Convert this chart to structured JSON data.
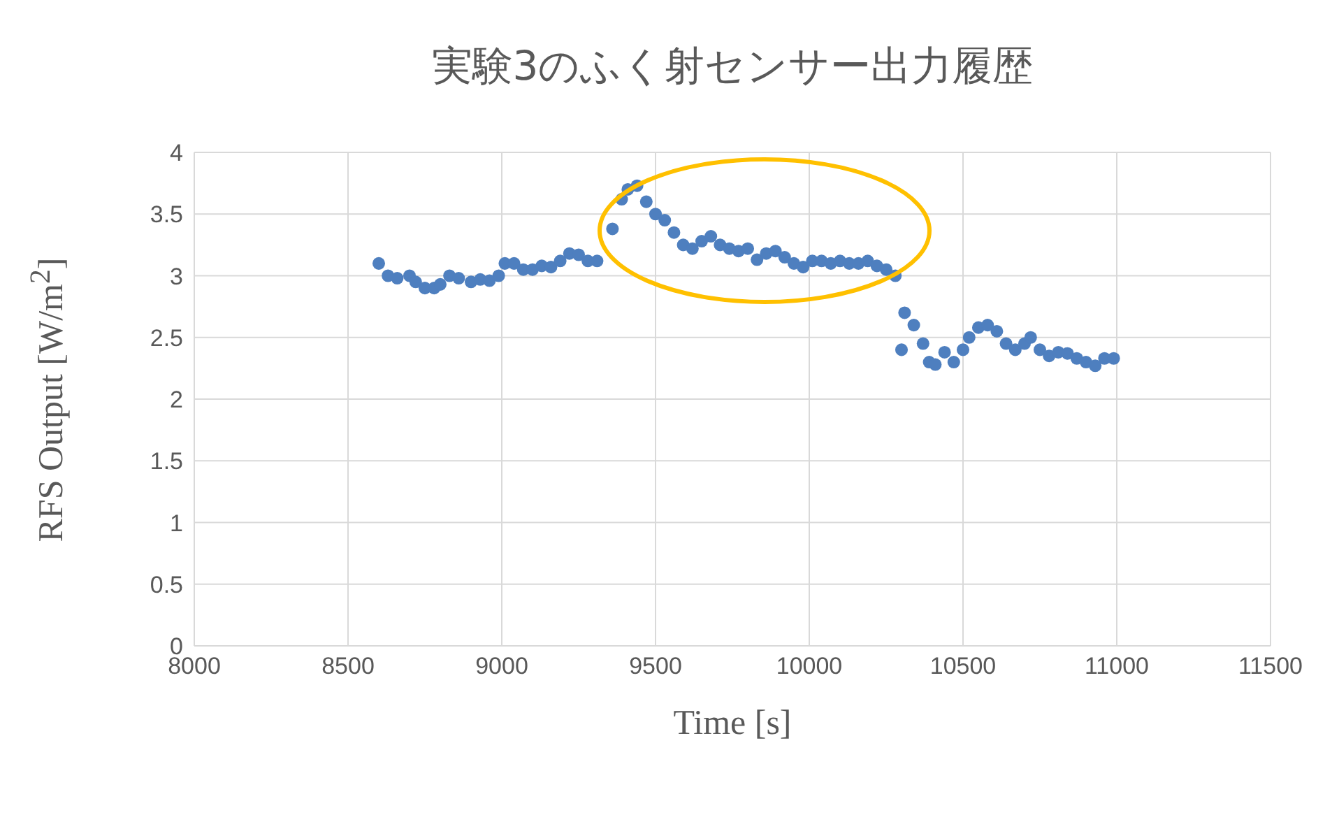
{
  "chart_data": {
    "type": "scatter",
    "title": "実験3のふく射センサー出力履歴",
    "xlabel": "Time [s]",
    "ylabel": "RFS Output [W/m$^{2}$]",
    "xlim": [
      8000,
      11500
    ],
    "xticks": [
      8000,
      8500,
      9000,
      9500,
      10000,
      10500,
      11000,
      11500
    ],
    "ylim": [
      0,
      4
    ],
    "yticks": [
      0,
      0.5,
      1,
      1.5,
      2,
      2.5,
      3,
      3.5,
      4
    ],
    "grid": true,
    "marker": "circle",
    "series": [
      {
        "color": "#4e7fbf",
        "x": [
          8600,
          8630,
          8660,
          8700,
          8720,
          8750,
          8780,
          8800,
          8830,
          8860,
          8900,
          8930,
          8960,
          8990,
          9010,
          9040,
          9070,
          9100,
          9130,
          9160,
          9190,
          9220,
          9250,
          9280,
          9310,
          9360,
          9390,
          9410,
          9440,
          9470,
          9500,
          9530,
          9560,
          9590,
          9620,
          9650,
          9680,
          9710,
          9740,
          9770,
          9800,
          9830,
          9860,
          9890,
          9920,
          9950,
          9980,
          10010,
          10040,
          10070,
          10100,
          10130,
          10160,
          10190,
          10220,
          10250,
          10280,
          10300,
          10310,
          10340,
          10370,
          10390,
          10410,
          10440,
          10470,
          10500,
          10520,
          10550,
          10580,
          10610,
          10640,
          10670,
          10700,
          10720,
          10750,
          10780,
          10810,
          10840,
          10870,
          10900,
          10930,
          10960,
          10990
        ],
        "values": [
          3.1,
          3.0,
          2.98,
          3.0,
          2.95,
          2.9,
          2.9,
          2.93,
          3.0,
          2.98,
          2.95,
          2.97,
          2.96,
          3.0,
          3.1,
          3.1,
          3.05,
          3.05,
          3.08,
          3.07,
          3.12,
          3.18,
          3.17,
          3.12,
          3.12,
          3.38,
          3.62,
          3.7,
          3.73,
          3.6,
          3.5,
          3.45,
          3.35,
          3.25,
          3.22,
          3.28,
          3.32,
          3.25,
          3.22,
          3.2,
          3.22,
          3.13,
          3.18,
          3.2,
          3.15,
          3.1,
          3.07,
          3.12,
          3.12,
          3.1,
          3.12,
          3.1,
          3.1,
          3.12,
          3.08,
          3.05,
          3.0,
          2.4,
          2.7,
          2.6,
          2.45,
          2.3,
          2.28,
          2.38,
          2.3,
          2.4,
          2.5,
          2.58,
          2.6,
          2.55,
          2.45,
          2.4,
          2.45,
          2.5,
          2.4,
          2.35,
          2.38,
          2.37,
          2.33,
          2.3,
          2.27,
          2.33,
          2.33
        ]
      }
    ]
  }
}
